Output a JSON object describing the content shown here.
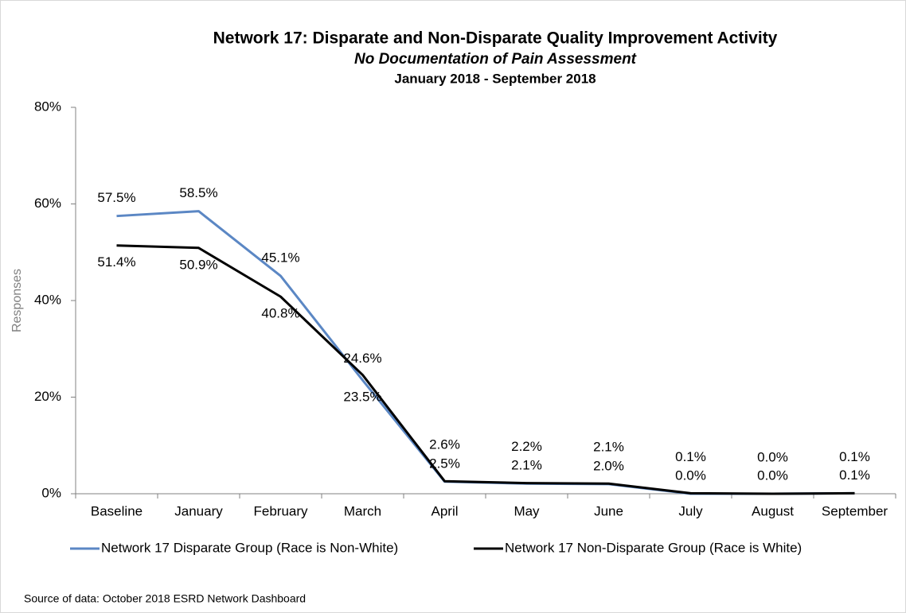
{
  "chart_data": {
    "type": "line",
    "title": "Network 17: Disparate and Non-Disparate Quality Improvement Activity",
    "subtitle": "No Documentation of Pain Assessment",
    "subtitle2": "January 2018 - September 2018",
    "y_label": "Responses",
    "source": "Source of data:  October 2018 ESRD Network Dashboard",
    "categories": [
      "Baseline",
      "January",
      "February",
      "March",
      "April",
      "May",
      "June",
      "July",
      "August",
      "September"
    ],
    "ylim": [
      0,
      80
    ],
    "yticks": [
      {
        "value": 0,
        "label": "0%"
      },
      {
        "value": 20,
        "label": "20%"
      },
      {
        "value": 40,
        "label": "40%"
      },
      {
        "value": 60,
        "label": "60%"
      },
      {
        "value": 80,
        "label": "80%"
      }
    ],
    "legend": "bottom",
    "series": [
      {
        "name": "Network 17 Disparate Group (Race is Non-White)",
        "color": "#5b87c4",
        "values": [
          57.5,
          58.5,
          45.1,
          23.5,
          2.5,
          2.1,
          2.0,
          0.0,
          0.0,
          0.1
        ],
        "value_labels": [
          "57.5%",
          "58.5%",
          "45.1%",
          "23.5%",
          "2.5%",
          "2.1%",
          "2.0%",
          "0.0%",
          "0.0%",
          "0.1%"
        ]
      },
      {
        "name": "Network 17 Non-Disparate Group (Race is White)",
        "color": "#000000",
        "values": [
          51.4,
          50.9,
          40.8,
          24.6,
          2.6,
          2.2,
          2.1,
          0.1,
          0.0,
          0.1
        ],
        "value_labels": [
          "51.4%",
          "50.9%",
          "40.8%",
          "24.6%",
          "2.6%",
          "2.2%",
          "2.1%",
          "0.1%",
          "0.0%",
          "0.1%"
        ]
      }
    ]
  }
}
